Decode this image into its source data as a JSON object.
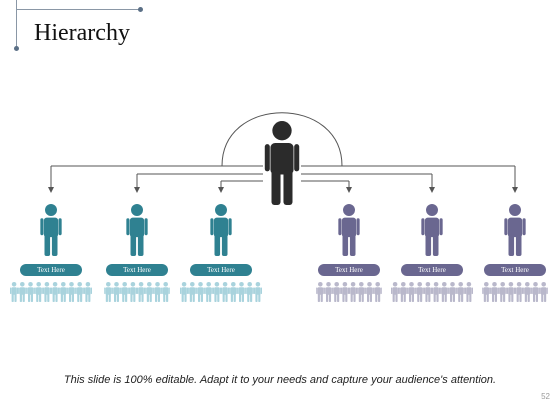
{
  "slide": {
    "title": "Hierarchy",
    "footer": "This slide is 100% editable. Adapt it to your needs and capture your audience's attention.",
    "page_number": "52"
  },
  "colors": {
    "leader": "#2b2b2b",
    "teal": "#2f8191",
    "teal_light": "#a9d3dd",
    "purple": "#6a6790",
    "purple_light": "#b9b8cb",
    "connector": "#555555"
  },
  "leader": {
    "icon": "person-icon"
  },
  "groups": [
    {
      "label": "Text Here",
      "tone": "teal",
      "team_size": 10
    },
    {
      "label": "Text Here",
      "tone": "teal",
      "team_size": 8
    },
    {
      "label": "Text Here",
      "tone": "teal",
      "team_size": 10
    },
    {
      "label": "Text Here",
      "tone": "purple",
      "team_size": 8
    },
    {
      "label": "Text Here",
      "tone": "purple",
      "team_size": 10
    },
    {
      "label": "Text Here",
      "tone": "purple",
      "team_size": 8
    }
  ]
}
